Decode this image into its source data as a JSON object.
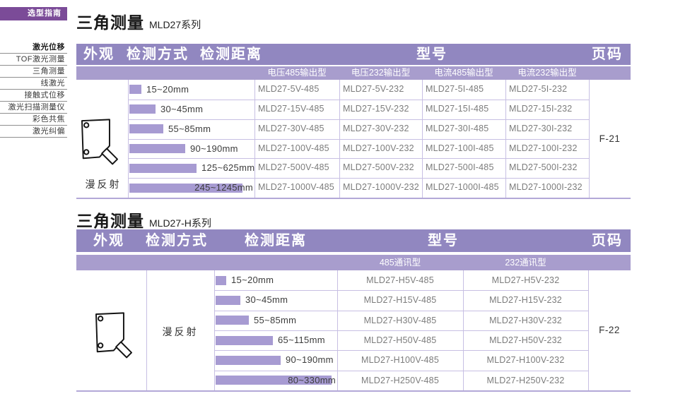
{
  "colors": {
    "header_purple": "#9187c0",
    "subheader_purple": "#a89dcd",
    "bar_purple": "#a79bd2",
    "grid_purple": "#c7bfe3",
    "tab_purple": "#7b4b98"
  },
  "sidebar": {
    "tab": "选型指南",
    "items": [
      {
        "label": "激光位移",
        "bold": true
      },
      {
        "label": "TOF激光测量",
        "bold": false
      },
      {
        "label": "三角测量",
        "bold": false
      },
      {
        "label": "线激光",
        "bold": false
      },
      {
        "label": "接触式位移",
        "bold": false
      },
      {
        "label": "激光扫描测量仪",
        "bold": false
      },
      {
        "label": "彩色共焦",
        "bold": false
      },
      {
        "label": "激光纠偏",
        "bold": false
      }
    ]
  },
  "tables": [
    {
      "title": "三角测量",
      "series": "MLD27系列",
      "headers": {
        "appearance": "外观",
        "method": "检测方式",
        "distance": "检测距离",
        "model": "型号",
        "page": "页码"
      },
      "subheaders": [
        "电压485输出型",
        "电压232输出型",
        "电流485输出型",
        "电流232输出型"
      ],
      "method_value": "漫反射",
      "page_value": "F-21",
      "rows": [
        {
          "range": "15~20mm",
          "bar": 17,
          "models": [
            "MLD27-5V-485",
            "MLD27-5V-232",
            "MLD27-5I-485",
            "MLD27-5I-232"
          ]
        },
        {
          "range": "30~45mm",
          "bar": 37,
          "models": [
            "MLD27-15V-485",
            "MLD27-15V-232",
            "MLD27-15I-485",
            "MLD27-15I-232"
          ]
        },
        {
          "range": "55~85mm",
          "bar": 48,
          "models": [
            "MLD27-30V-485",
            "MLD27-30V-232",
            "MLD27-30I-485",
            "MLD27-30I-232"
          ]
        },
        {
          "range": "90~190mm",
          "bar": 79,
          "models": [
            "MLD27-100V-485",
            "MLD27-100V-232",
            "MLD27-100I-485",
            "MLD27-100I-232"
          ]
        },
        {
          "range": "125~625mm",
          "bar": 95,
          "models": [
            "MLD27-500V-485",
            "MLD27-500V-232",
            "MLD27-500I-485",
            "MLD27-500I-232"
          ]
        },
        {
          "range": "245~1245mm",
          "bar": 160,
          "models": [
            "MLD27-1000V-485",
            "MLD27-1000V-232",
            "MLD27-1000I-485",
            "MLD27-1000I-232"
          ]
        }
      ]
    },
    {
      "title": "三角测量",
      "series": "MLD27-H系列",
      "headers": {
        "appearance": "外观",
        "method": "检测方式",
        "distance": "检测距离",
        "model": "型号",
        "page": "页码"
      },
      "subheaders": [
        "485通讯型",
        "232通讯型"
      ],
      "method_value": "漫反射",
      "page_value": "F-22",
      "rows": [
        {
          "range": "15~20mm",
          "bar": 15,
          "models": [
            "MLD27-H5V-485",
            "MLD27-H5V-232"
          ]
        },
        {
          "range": "30~45mm",
          "bar": 35,
          "models": [
            "MLD27-H15V-485",
            "MLD27-H15V-232"
          ]
        },
        {
          "range": "55~85mm",
          "bar": 47,
          "models": [
            "MLD27-H30V-485",
            "MLD27-H30V-232"
          ]
        },
        {
          "range": "65~115mm",
          "bar": 81,
          "models": [
            "MLD27-H50V-485",
            "MLD27-H50V-232"
          ]
        },
        {
          "range": "90~190mm",
          "bar": 92,
          "models": [
            "MLD27-H100V-485",
            "MLD27-H100V-232"
          ]
        },
        {
          "range": "80~330mm",
          "bar": 164,
          "models": [
            "MLD27-H250V-485",
            "MLD27-H250V-232"
          ]
        }
      ]
    }
  ]
}
